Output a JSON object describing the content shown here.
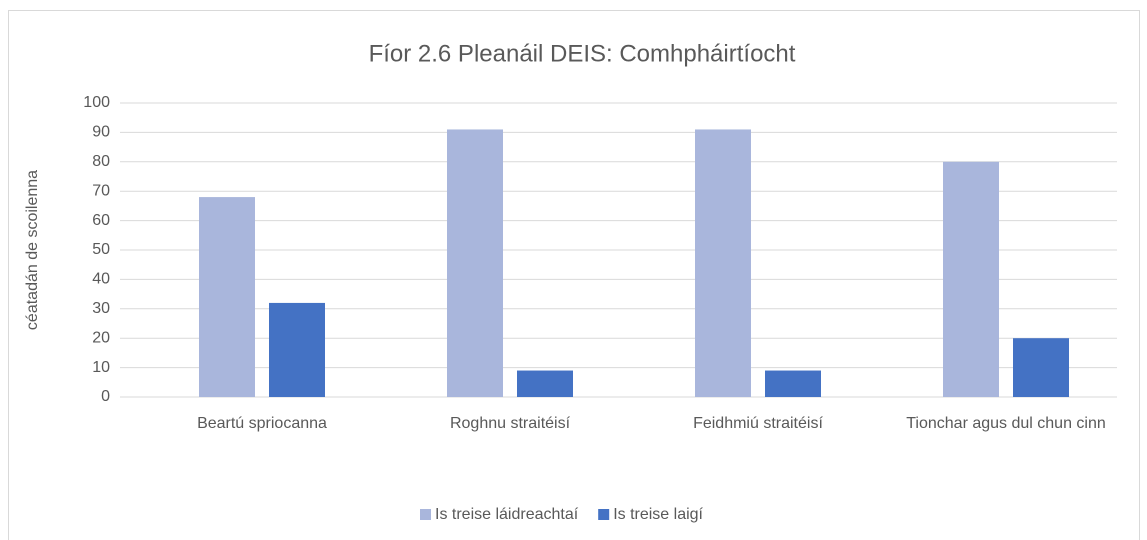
{
  "chart_data": {
    "type": "bar",
    "title": "Fíor 2.6 Pleanáil DEIS: Comhpháirtíocht",
    "y_label": "céatadán de scoilenna",
    "categories": [
      "Beartú spriocanna",
      "Roghnu straitéisí",
      "Feidhmiú straitéisí",
      "Tionchar agus dul chun cinn"
    ],
    "series": [
      {
        "name": "Is treise láidreachtaí",
        "color": "#a9b6dc",
        "values": [
          68,
          91,
          91,
          80
        ]
      },
      {
        "name": "Is treise laigí",
        "color": "#4472c4",
        "values": [
          32,
          9,
          9,
          20
        ]
      }
    ],
    "ylim": [
      0,
      100
    ],
    "yticks": [
      0,
      10,
      20,
      30,
      40,
      50,
      60,
      70,
      80,
      90,
      100
    ],
    "grid": true,
    "legend": "bottom"
  }
}
